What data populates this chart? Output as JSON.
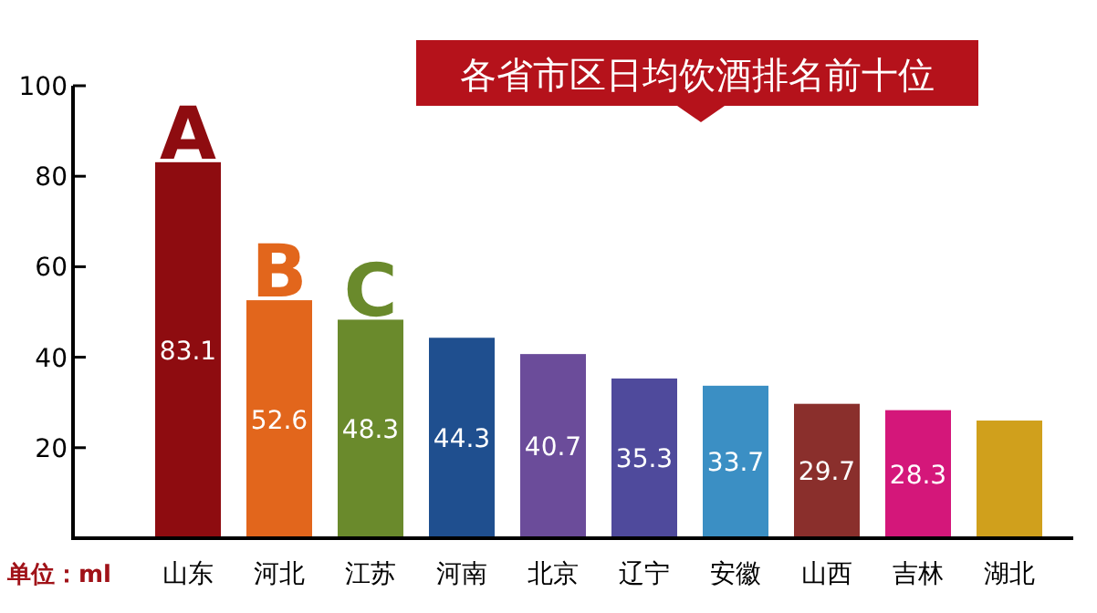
{
  "chart_data": {
    "type": "bar",
    "title": "各省市区日均饮酒排名前十位",
    "categories": [
      "山东",
      "河北",
      "江苏",
      "河南",
      "北京",
      "辽宁",
      "安徽",
      "山西",
      "吉林",
      "湖北"
    ],
    "values": [
      83.1,
      52.6,
      48.3,
      44.3,
      40.7,
      35.3,
      33.7,
      29.7,
      28.3,
      26
    ],
    "value_labels": [
      "83.1",
      "52.6",
      "48.3",
      "44.3",
      "40.7",
      "35.3",
      "33.7",
      "29.7",
      "28.3",
      null
    ],
    "colors": [
      "#8e0c10",
      "#e2661c",
      "#6a8a2c",
      "#1f4f8f",
      "#6b4c9a",
      "#4f4a9c",
      "#3b8fc4",
      "#8a2f2c",
      "#d4177a",
      "#d0a01c"
    ],
    "ylim": [
      0,
      100
    ],
    "yticks": [
      20,
      40,
      60,
      80,
      100
    ],
    "annotations": [
      "单位：ml",
      {
        "text": "A",
        "x": "山东",
        "y": 83.1
      },
      {
        "text": "B",
        "x": "河北",
        "y": 52.6
      },
      {
        "text": "C",
        "x": "江苏",
        "y": 48.3
      }
    ],
    "grid": false
  }
}
